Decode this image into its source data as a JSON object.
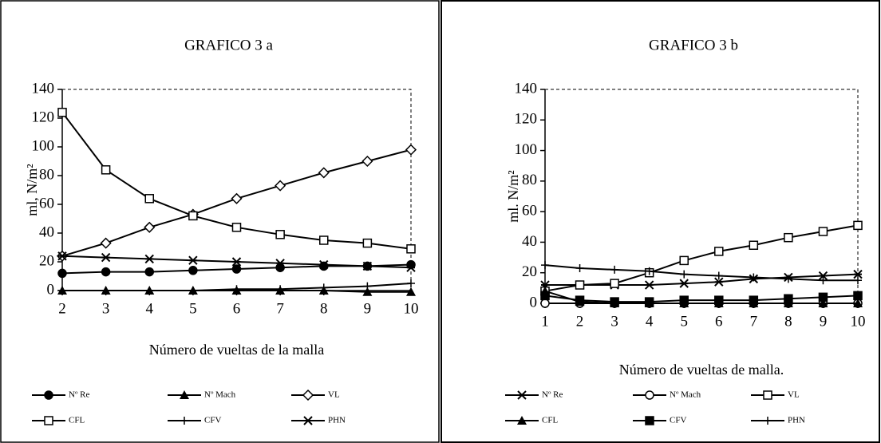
{
  "chart_data": [
    {
      "type": "line",
      "title": "GRAFICO 3 a",
      "y_label": "ml, N/m²",
      "x_label": "Número de vueltas de la malla",
      "x": [
        2,
        3,
        4,
        5,
        6,
        7,
        8,
        9,
        10
      ],
      "xlim": [
        2,
        10
      ],
      "xticks": [
        2,
        3,
        4,
        5,
        6,
        7,
        8,
        9,
        10
      ],
      "ylim": [
        0,
        140
      ],
      "yticks": [
        0,
        20,
        40,
        60,
        80,
        100,
        120,
        140
      ],
      "grid": false,
      "series": [
        {
          "name": "Nº Re",
          "color": "#000",
          "marker": "circle-filled",
          "values": [
            12,
            13,
            13,
            14,
            15,
            16,
            17,
            17,
            18
          ]
        },
        {
          "name": "Nº Mach",
          "color": "#000",
          "marker": "triangle-filled",
          "values": [
            0,
            0,
            0,
            0,
            0,
            0,
            0,
            -1,
            -1
          ]
        },
        {
          "name": "VL",
          "color": "#000",
          "marker": "diamond-open",
          "values": [
            24,
            33,
            44,
            53,
            64,
            73,
            82,
            90,
            98
          ]
        },
        {
          "name": "CFL",
          "color": "#000",
          "marker": "square-open",
          "values": [
            124,
            84,
            64,
            52,
            44,
            39,
            35,
            33,
            29
          ]
        },
        {
          "name": "CFV",
          "color": "#000",
          "marker": "plus",
          "values": [
            0,
            0,
            0,
            0,
            1,
            1,
            2,
            3,
            5
          ]
        },
        {
          "name": "PHN",
          "color": "#000",
          "marker": "asterisk",
          "values": [
            24,
            23,
            22,
            21,
            20,
            19,
            18,
            17,
            16
          ]
        }
      ]
    },
    {
      "type": "line",
      "title": "GRAFICO 3 b",
      "y_label": "ml. N/m²",
      "x_label": "Número de vueltas de malla.",
      "x": [
        1,
        2,
        3,
        4,
        5,
        6,
        7,
        8,
        9,
        10
      ],
      "xlim": [
        1,
        10
      ],
      "xticks": [
        1,
        2,
        3,
        4,
        5,
        6,
        7,
        8,
        9,
        10
      ],
      "ylim": [
        0,
        140
      ],
      "yticks": [
        0,
        20,
        40,
        60,
        80,
        100,
        120,
        140
      ],
      "grid": false,
      "series": [
        {
          "name": "Nº Re",
          "color": "#000",
          "marker": "asterisk",
          "values": [
            12,
            12,
            12,
            12,
            13,
            14,
            16,
            17,
            18,
            19
          ]
        },
        {
          "name": "Nº Mach",
          "color": "#000",
          "marker": "circle-open",
          "values": [
            0,
            0,
            0,
            0,
            0,
            0,
            0,
            0,
            0,
            0
          ]
        },
        {
          "name": "VL",
          "color": "#000",
          "marker": "square-open",
          "values": [
            8,
            12,
            13,
            20,
            28,
            34,
            38,
            43,
            47,
            51
          ]
        },
        {
          "name": "CFL",
          "color": "#000",
          "marker": "triangle-filled",
          "values": [
            8,
            1,
            0,
            0,
            0,
            0,
            0,
            0,
            0,
            0
          ]
        },
        {
          "name": "CFV",
          "color": "#000",
          "marker": "square-filled",
          "values": [
            5,
            2,
            1,
            1,
            2,
            2,
            2,
            3,
            4,
            5
          ]
        },
        {
          "name": "PHN",
          "color": "#000",
          "marker": "plus",
          "values": [
            25,
            23,
            22,
            21,
            19,
            18,
            17,
            16,
            15,
            15
          ]
        }
      ]
    }
  ]
}
